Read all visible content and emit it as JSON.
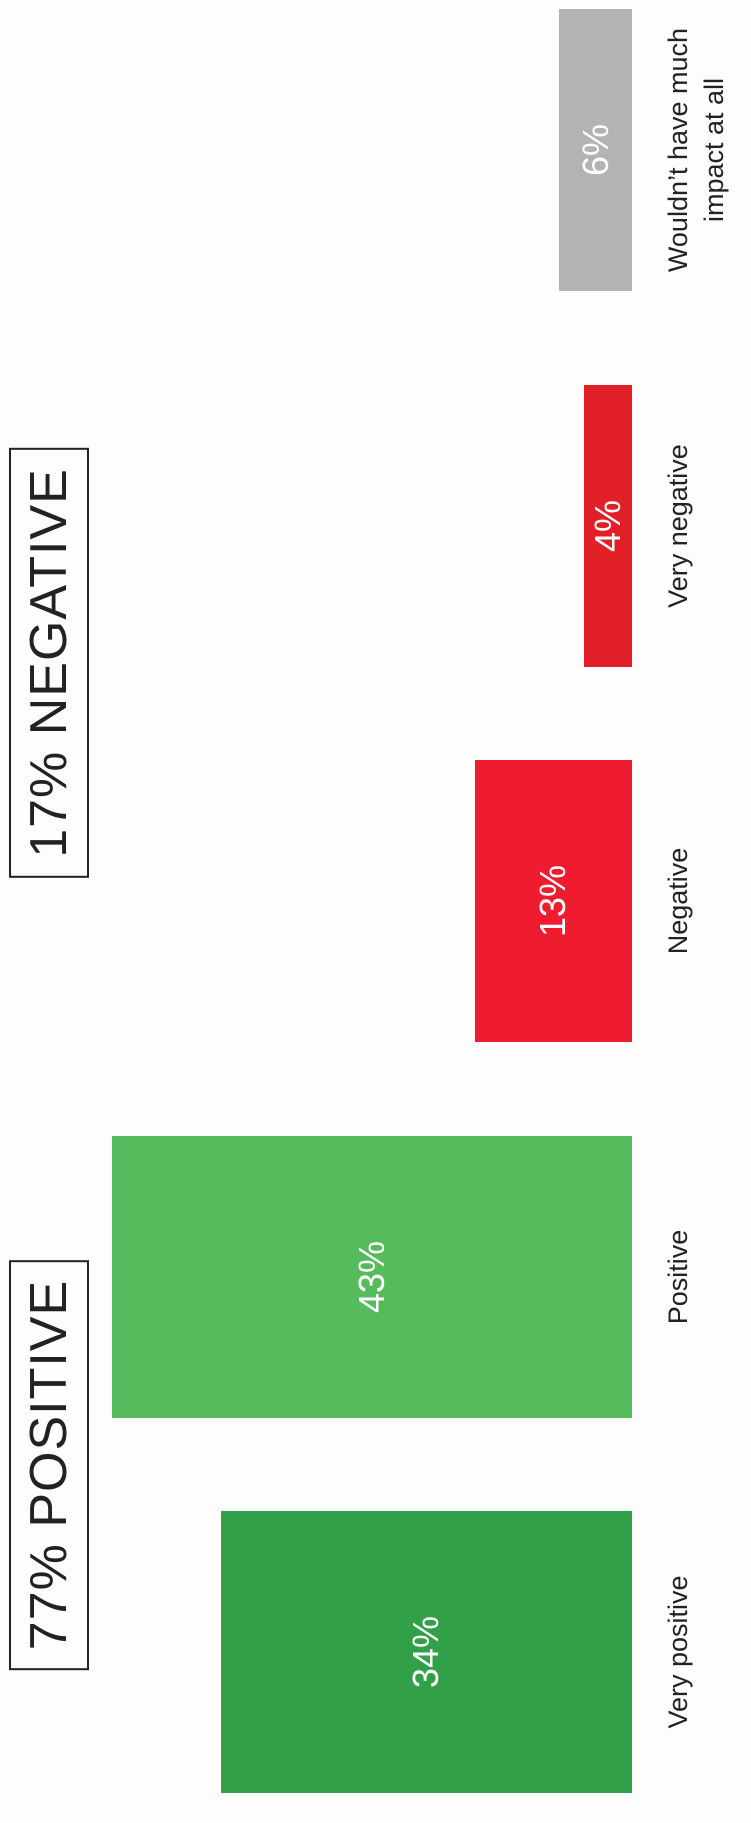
{
  "chart_data": {
    "type": "bar",
    "categories": [
      "Very positive",
      "Positive",
      "Negative",
      "Very negative",
      "Wouldn’t have much impact at all"
    ],
    "values": [
      34,
      43,
      13,
      4,
      6
    ],
    "value_labels": [
      "34%",
      "43%",
      "13%",
      "4%",
      "6%"
    ],
    "colors": [
      "#31a048",
      "#55bb5c",
      "#ee1c2e",
      "#e01f27",
      "#b2b3b5"
    ],
    "annotations": [
      "77% POSITIVE",
      "17% NEGATIVE"
    ]
  }
}
